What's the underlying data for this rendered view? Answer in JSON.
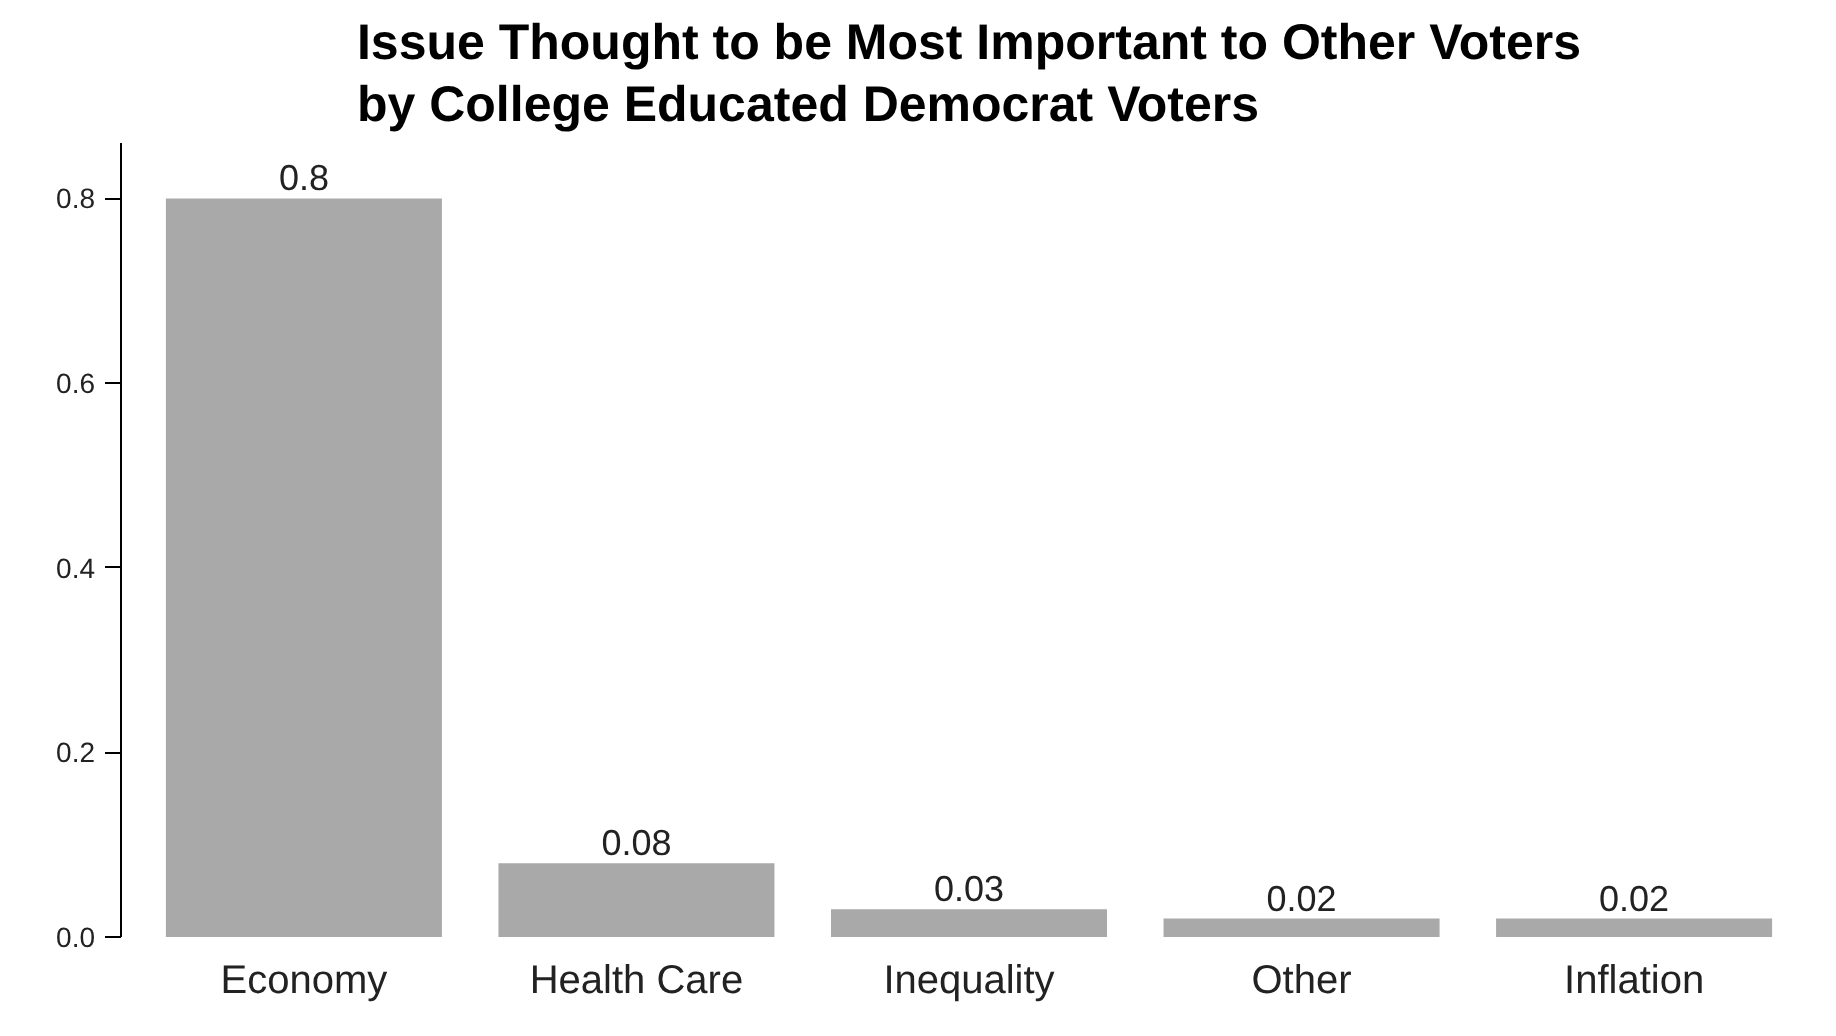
{
  "chart_data": {
    "type": "bar",
    "title": "Issue Thought to be Most Important to Other Voters\nby College Educated Democrat Voters",
    "categories": [
      "Economy",
      "Health Care",
      "Inequality",
      "Other",
      "Inflation"
    ],
    "values": [
      0.8,
      0.08,
      0.03,
      0.02,
      0.02
    ],
    "color": "#a9a9a9",
    "ylim": [
      0,
      0.86
    ],
    "yticks": [
      {
        "value": 0,
        "label": "0.0"
      },
      {
        "value": 0.2,
        "label": "0.2"
      },
      {
        "value": 0.4,
        "label": "0.4"
      },
      {
        "value": 0.6,
        "label": "0.6"
      },
      {
        "value": 0.8,
        "label": "0.8"
      }
    ],
    "data_labels": true
  }
}
